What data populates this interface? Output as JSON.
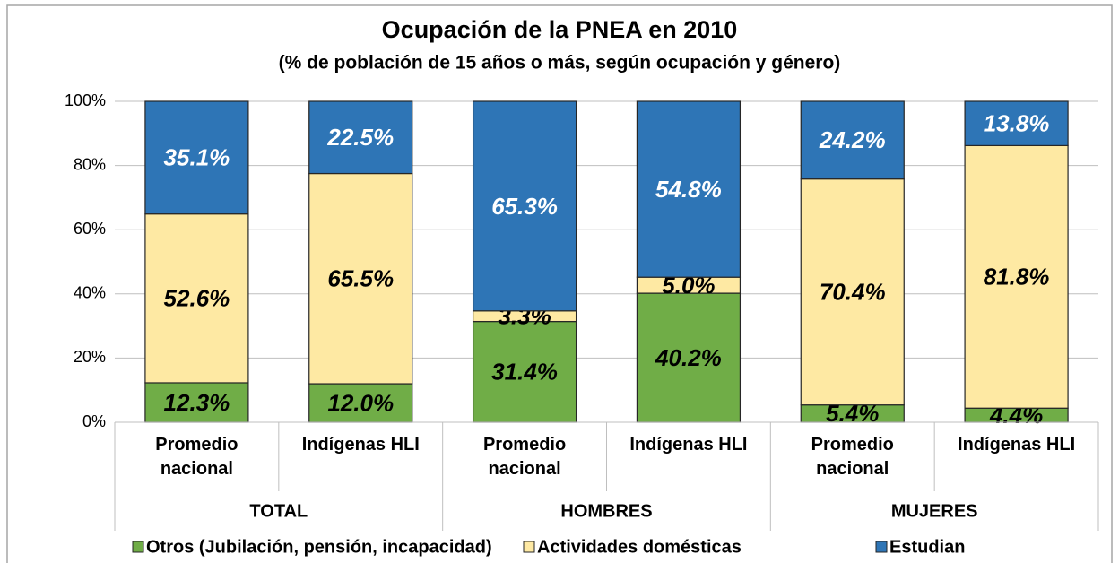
{
  "chart_data": {
    "type": "stacked_bar",
    "title": "Ocupación de la PNEA en 2010",
    "subtitle": "(% de población de 15 años o más, según ocupación y género)",
    "categories": [
      "Promedio nacional",
      "Indígenas HLI",
      "Promedio nacional",
      "Indígenas HLI",
      "Promedio nacional",
      "Indígenas HLI"
    ],
    "groups": [
      "TOTAL",
      "HOMBRES",
      "MUJERES"
    ],
    "series": [
      {
        "name": "Otros (Jubilación, pensión, incapacidad)",
        "color": "#70ad47",
        "values": [
          12.3,
          12.0,
          31.4,
          40.2,
          5.4,
          4.4
        ],
        "value_labels": [
          "12.3%",
          "12.0%",
          "31.4%",
          "40.2%",
          "5.4%",
          "4.4%"
        ]
      },
      {
        "name": "Actividades domésticas",
        "color": "#fee9a3",
        "values": [
          52.6,
          65.5,
          3.3,
          5.0,
          70.4,
          81.8
        ],
        "value_labels": [
          "52.6%",
          "65.5%",
          "3.3%",
          "5.0%",
          "70.4%",
          "81.8%"
        ]
      },
      {
        "name": "Estudian",
        "color": "#2e75b6",
        "values": [
          35.1,
          22.5,
          65.3,
          54.8,
          24.2,
          13.8
        ],
        "value_labels": [
          "35.1%",
          "22.5%",
          "65.3%",
          "54.8%",
          "24.2%",
          "13.8%"
        ]
      }
    ],
    "ylim": [
      0,
      100
    ],
    "yticks": [
      {
        "value": 0,
        "label": "0%"
      },
      {
        "value": 20,
        "label": "20%"
      },
      {
        "value": 40,
        "label": "40%"
      },
      {
        "value": 60,
        "label": "60%"
      },
      {
        "value": 80,
        "label": "80%"
      },
      {
        "value": 100,
        "label": "100%"
      }
    ],
    "grid": true,
    "legend": "bottom"
  }
}
